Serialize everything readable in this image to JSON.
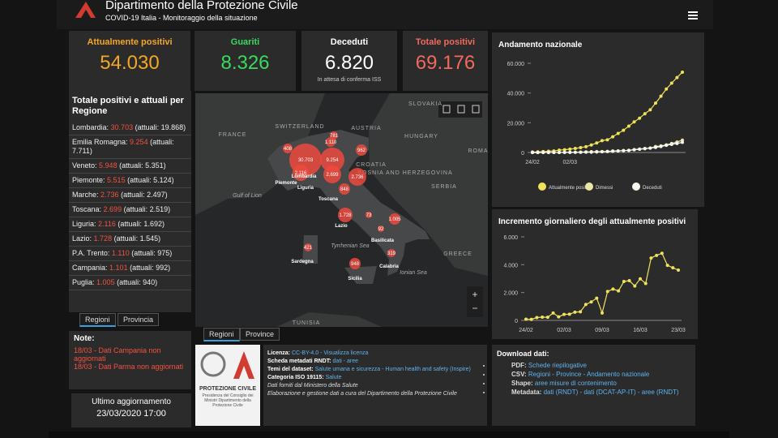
{
  "header": {
    "title": "Dipartimento della Protezione Civile",
    "subtitle": "COVID-19 Italia - Monitoraggio della situazione"
  },
  "stats": [
    {
      "label": "Attualmente positivi",
      "value": "54.030"
    },
    {
      "label": "Guariti",
      "value": "8.326"
    },
    {
      "label": "Deceduti",
      "value": "6.820",
      "note": "In attesa di conferma ISS"
    },
    {
      "label": "Totale positivi",
      "value": "69.176"
    }
  ],
  "regions": {
    "title": "Totale positivi e attuali per Regione",
    "items": [
      {
        "name": "Lombardia:",
        "total": "30.703",
        "active": "(attuali: 19.868)"
      },
      {
        "name": "Emilia Romagna:",
        "total": "9.254",
        "active": "(attuali: 7.711)"
      },
      {
        "name": "Veneto:",
        "total": "5.948",
        "active": "(attuali: 5.351)"
      },
      {
        "name": "Piemonte:",
        "total": "5.515",
        "active": "(attuali: 5.124)"
      },
      {
        "name": "Marche:",
        "total": "2.736",
        "active": "(attuali: 2.497)"
      },
      {
        "name": "Toscana:",
        "total": "2.699",
        "active": "(attuali: 2.519)"
      },
      {
        "name": "Liguria:",
        "total": "2.116",
        "active": "(attuali: 1.692)"
      },
      {
        "name": "Lazio:",
        "total": "1.728",
        "active": "(attuali: 1.545)"
      },
      {
        "name": "P.A. Trento:",
        "total": "1.110",
        "active": "(attuali: 975)"
      },
      {
        "name": "Campania:",
        "total": "1.101",
        "active": "(attuali: 992)"
      },
      {
        "name": "Puglia:",
        "total": "1.005",
        "active": "(attuali: 940)"
      }
    ],
    "tabs": [
      "Regioni",
      "Provincia"
    ]
  },
  "notes": {
    "title": "Note:",
    "items": [
      "18/03 - Dati Campania non aggiornati",
      "18/03 - Dati Parma non aggiornati"
    ]
  },
  "update": {
    "label": "Ultimo aggiornamento",
    "value": "23/03/2020 17:00"
  },
  "map": {
    "countries": [
      "FRANCE",
      "SWITZERLAND",
      "AUSTRIA",
      "HUNGARY",
      "SLOVAKIA",
      "CROATIA",
      "BOSNIA AND HERZEGOVINA",
      "SERBIA",
      "ROMA",
      "GREECE",
      "Tyrrhenian Sea",
      "Ionian Sea",
      "Gulf of Lion",
      "TUNISIA"
    ],
    "region_names": [
      "Lombardia",
      "Piemonte",
      "Liguria",
      "Toscana",
      "Lazio",
      "Basilicata",
      "Sardegna",
      "Sicilia",
      "Calabria"
    ],
    "bubbles": [
      "408",
      "30.703",
      "781",
      "1.110",
      "962",
      "9.254",
      "2.116",
      "2.699",
      "2.736",
      "848",
      "1.728",
      "73",
      "92",
      "1.005",
      "421",
      "948",
      "319"
    ],
    "zoom": [
      "+",
      "−"
    ],
    "tabs": [
      "Regioni",
      "Province"
    ]
  },
  "logo": {
    "name": "PROTEZIONE CIVILE",
    "caption": "Presidenza del Consiglio dei Ministri Dipartimento della Protezione Civile"
  },
  "license": [
    {
      "label": "Licenza:",
      "text": "CC-BY-4.0 - Visualizza licenza"
    },
    {
      "label": "Scheda metadati RNDT:",
      "text": "dati - aree"
    },
    {
      "label": "Temi del dataset:",
      "text": "Salute umana e sicurezza - Human health and safety (Inspire)"
    },
    {
      "label": "Categoria ISO 19115:",
      "text": "Salute"
    },
    {
      "text": "Dati forniti dal Ministero della Salute"
    },
    {
      "text": "Elaborazione e gestione dati a cura del Dipartimento della Protezione Civile"
    }
  ],
  "download": {
    "title": "Download dati:",
    "items": [
      {
        "label": "PDF:",
        "text": "Schede riepilogative"
      },
      {
        "label": "CSV:",
        "text": "Regioni - Province - Andamento nazionale"
      },
      {
        "label": "Shape:",
        "text": "aree misure di contenimento"
      },
      {
        "label": "Metadata:",
        "text": "dati (RNDT) - dati (DCAT-AP-IT) - aree (RNDT)"
      }
    ]
  },
  "charts": [
    {
      "type": "line",
      "title": "Andamento nazionale",
      "x_labels": [
        "24/02",
        null,
        null,
        null,
        null,
        null,
        null,
        "02/03",
        null,
        null,
        null,
        null,
        null,
        null,
        null,
        null,
        null,
        null,
        null,
        null,
        null,
        null,
        null,
        null,
        null,
        null,
        null,
        null,
        null
      ],
      "ylim": [
        0,
        60000
      ],
      "yticks": [
        0,
        {
          "value": 20000,
          "label": "20.000"
        },
        {
          "value": 40000,
          "label": "40.000"
        },
        {
          "value": 60000,
          "label": "60.000"
        }
      ],
      "series": [
        {
          "name": "Attualmente positivi",
          "color": "#f2e25a",
          "values": [
            311,
            385,
            588,
            821,
            1049,
            1577,
            1835,
            2263,
            2706,
            3296,
            3916,
            5061,
            6387,
            7985,
            8514,
            10590,
            12839,
            14955,
            17750,
            20603,
            23073,
            26062,
            28710,
            33190,
            37860,
            42681,
            46638,
            50418,
            54030
          ]
        },
        {
          "name": "Dimessi",
          "color": "#e9e7a6",
          "values": [
            1,
            3,
            45,
            46,
            46,
            50,
            83,
            149,
            160,
            276,
            414,
            523,
            589,
            622,
            724,
            1004,
            1045,
            1258,
            1439,
            1966,
            2335,
            2749,
            2941,
            4025,
            4440,
            5129,
            6072,
            7024,
            8326
          ]
        },
        {
          "name": "Deceduti",
          "color": "#f7f6ef",
          "values": [
            10,
            12,
            17,
            21,
            29,
            34,
            52,
            79,
            107,
            148,
            197,
            233,
            366,
            463,
            631,
            827,
            1016,
            1266,
            1441,
            1809,
            2158,
            2503,
            2978,
            3405,
            4032,
            4825,
            5476,
            6077,
            6820
          ]
        }
      ],
      "legend": "bottom"
    },
    {
      "type": "line",
      "title": "Incremento giornaliero degli attualmente positivi",
      "x_labels": [
        "24/02",
        null,
        null,
        null,
        null,
        null,
        null,
        "02/03",
        null,
        null,
        null,
        null,
        null,
        null,
        "09/03",
        null,
        null,
        null,
        null,
        null,
        null,
        "16/03",
        null,
        null,
        null,
        null,
        null,
        null,
        "23/03"
      ],
      "ylim": [
        0,
        6000
      ],
      "yticks": [
        0,
        {
          "value": 2000,
          "label": "2.000"
        },
        {
          "value": 4000,
          "label": "4.000"
        },
        {
          "value": 6000,
          "label": "6.000"
        }
      ],
      "series": [
        {
          "color": "#f2e25a",
          "values": [
            90,
            74,
            203,
            233,
            228,
            528,
            258,
            428,
            443,
            590,
            620,
            1145,
            1326,
            1598,
            529,
            2076,
            2249,
            2116,
            2795,
            2853,
            2470,
            2989,
            2648,
            4480,
            4670,
            4821,
            3957,
            3780,
            3612
          ]
        }
      ]
    }
  ]
}
